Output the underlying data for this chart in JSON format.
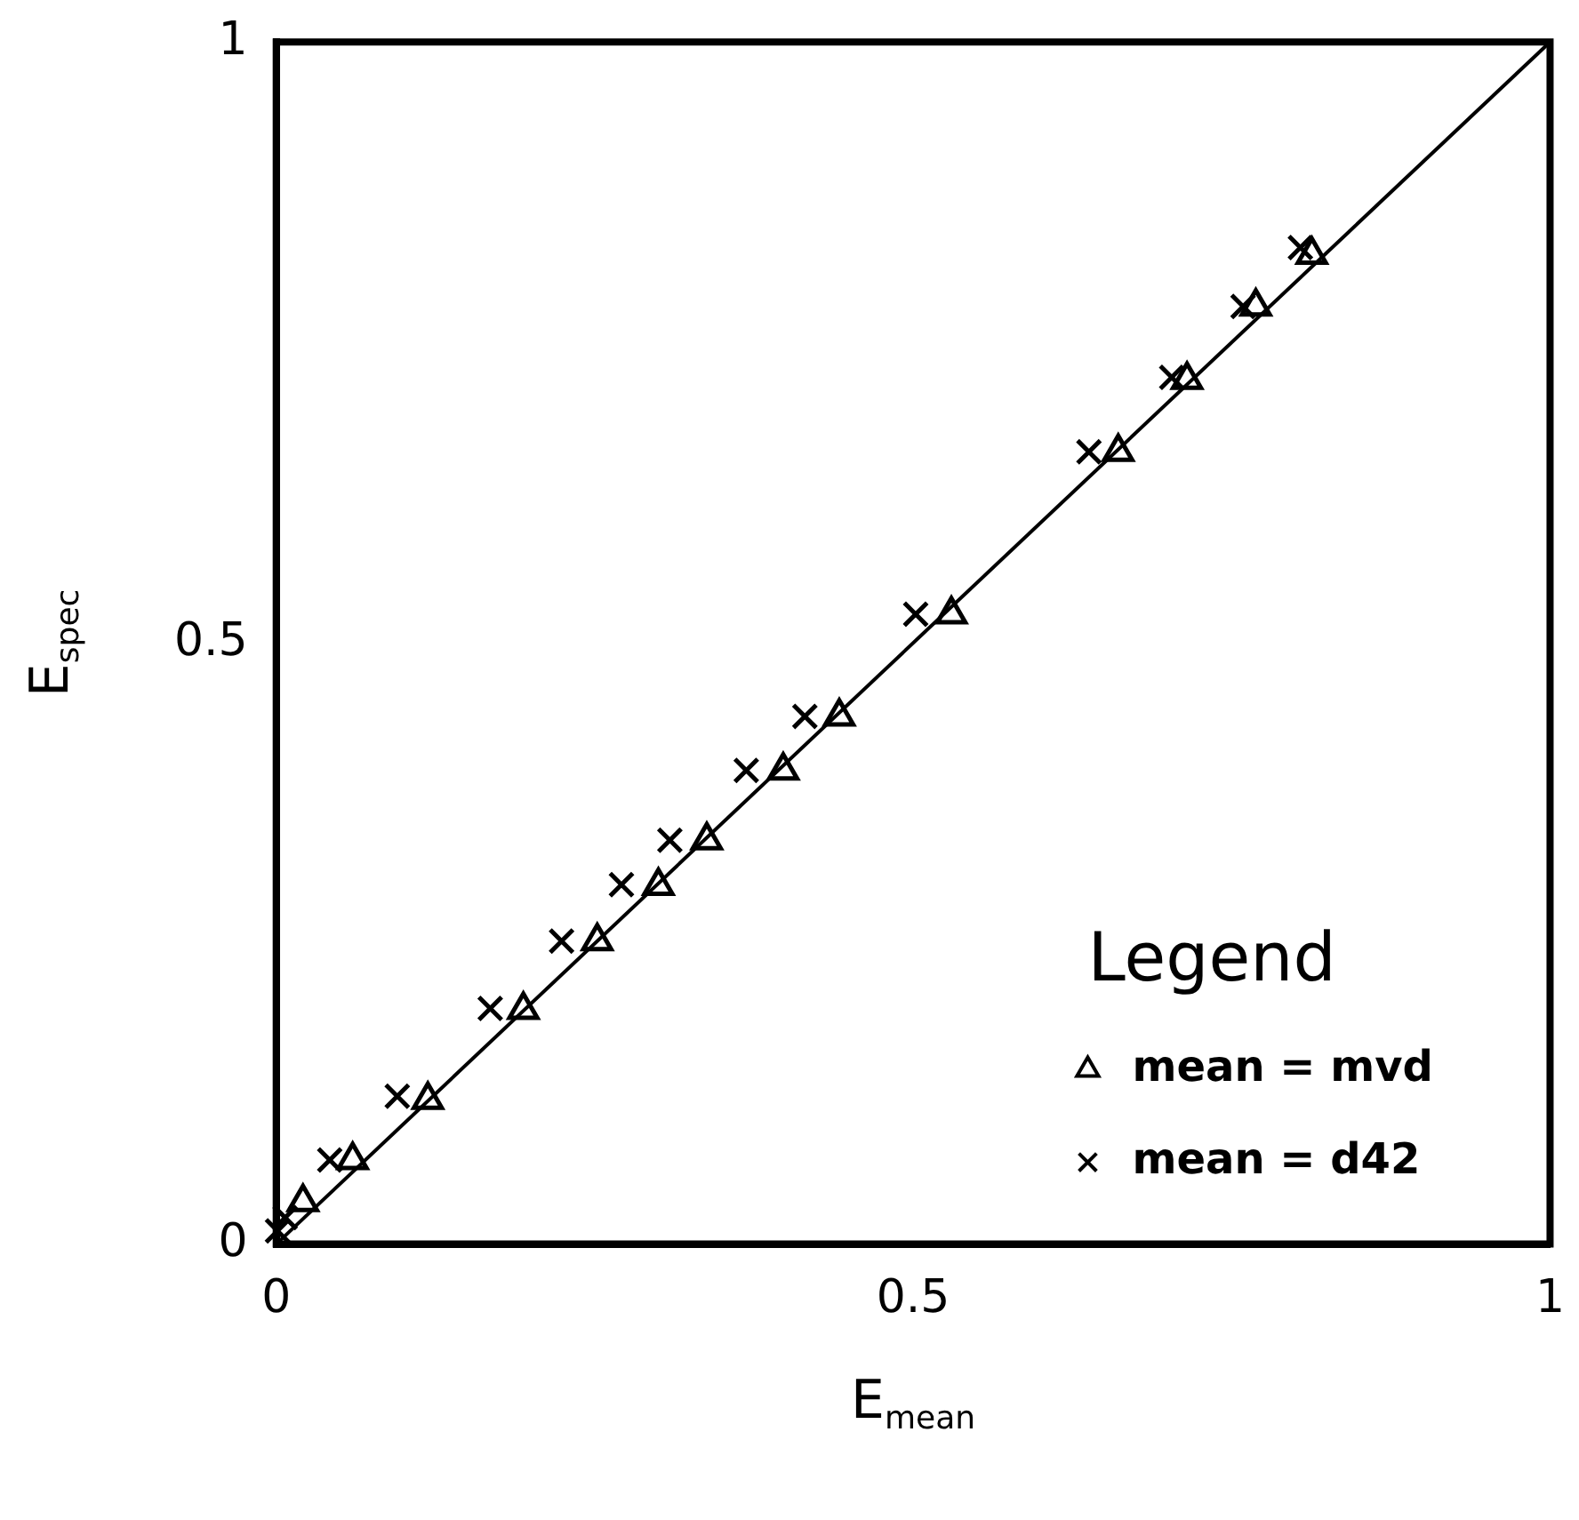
{
  "chart_data": {
    "type": "scatter",
    "xlabel": "E$_{mean}$",
    "ylabel": "E$_{spec}$",
    "legend_title": "Legend",
    "legend": "bottom right",
    "grid": false,
    "xlim": [
      0,
      1
    ],
    "ylim": [
      0,
      1
    ],
    "xticks": [
      0,
      0.5,
      1
    ],
    "yticks": [
      0,
      0.5,
      1
    ],
    "series": [
      {
        "name": "mean = mvd",
        "color": "#000000",
        "marker": "triangle",
        "x": [
          0.021,
          0.06,
          0.119,
          0.194,
          0.252,
          0.3,
          0.338,
          0.398,
          0.442,
          0.53,
          0.661,
          0.715,
          0.769,
          0.813
        ],
        "values": [
          0.035,
          0.07,
          0.12,
          0.195,
          0.252,
          0.298,
          0.336,
          0.394,
          0.439,
          0.524,
          0.659,
          0.719,
          0.78,
          0.823
        ]
      },
      {
        "name": "mean = d42",
        "color": "#000000",
        "marker": "cross",
        "x": [
          0.001,
          0.007,
          0.042,
          0.095,
          0.168,
          0.224,
          0.271,
          0.309,
          0.369,
          0.415,
          0.502,
          0.638,
          0.703,
          0.759,
          0.804
        ],
        "values": [
          0.011,
          0.022,
          0.07,
          0.123,
          0.196,
          0.252,
          0.299,
          0.336,
          0.394,
          0.439,
          0.524,
          0.659,
          0.721,
          0.78,
          0.829
        ]
      },
      {
        "type": "line",
        "color": "#000000",
        "marker": "none",
        "line_style": "solid",
        "x": [
          0,
          1
        ],
        "values": [
          0,
          1
        ]
      }
    ]
  }
}
